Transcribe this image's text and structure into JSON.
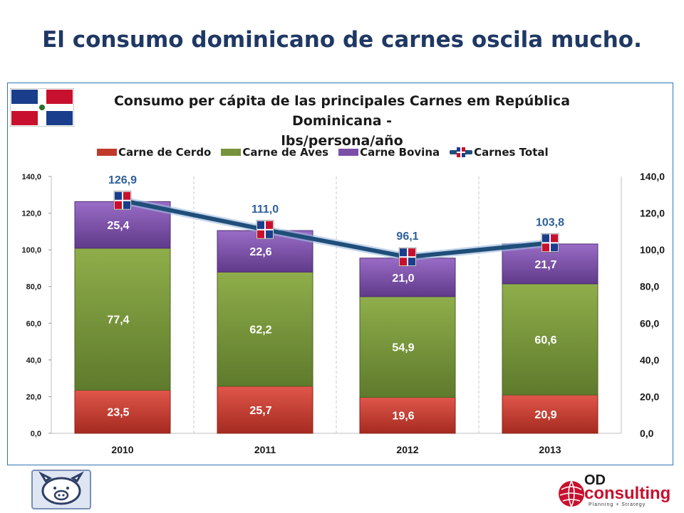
{
  "slide": {
    "title": "El consumo dominicano de carnes oscila mucho."
  },
  "colors": {
    "cerdo": "#c0392b",
    "aves": "#77933c",
    "bovina": "#7b4fa8",
    "total_line": "#1f4e79",
    "frame": "#2e75b6",
    "title": "#1f3864"
  },
  "icons": {
    "country_flag": "dominican-flag-icon",
    "pig": "pig-logo-icon",
    "company": "od-consulting-logo"
  },
  "logos": {
    "company_name": "consulting",
    "company_prefix": "OD",
    "tagline": "Planning + Strategy"
  },
  "chart_data": {
    "type": "bar",
    "stacked": true,
    "title": "Consumo per cápita de las principales Carnes em República Dominicana - lbs/persona/año",
    "title_lines": [
      "Consumo per cápita de las principales Carnes em República Dominicana -",
      "lbs/persona/año"
    ],
    "categories": [
      "2010",
      "2011",
      "2012",
      "2013"
    ],
    "series": [
      {
        "name": "Carne de Cerdo",
        "values": [
          23.5,
          25.7,
          19.6,
          20.9
        ],
        "labels": [
          "23,5",
          "25,7",
          "19,6",
          "20,9"
        ]
      },
      {
        "name": "Carne  de Aves",
        "values": [
          77.4,
          62.2,
          54.9,
          60.6
        ],
        "labels": [
          "77,4",
          "62,2",
          "54,9",
          "60,6"
        ]
      },
      {
        "name": "Carne Bovina",
        "values": [
          25.4,
          22.6,
          21.0,
          21.7
        ],
        "labels": [
          "25,4",
          "22,6",
          "21,0",
          "21,7"
        ]
      }
    ],
    "line_series": {
      "name": "Carnes Total",
      "values": [
        126.9,
        111.0,
        96.1,
        103.8
      ],
      "labels": [
        "126,9",
        "111,0",
        "96,1",
        "103,8"
      ]
    },
    "ylim": [
      0,
      140
    ],
    "yticks": [
      "0,0",
      "20,0",
      "40,0",
      "60,0",
      "80,0",
      "100,0",
      "120,0",
      "140,0"
    ],
    "y2ticks": [
      "0,0",
      "20,0",
      "40,0",
      "60,0",
      "80,0",
      "100,0",
      "120,0",
      "140,0"
    ],
    "grid": "vertical-dashed",
    "legend_position": "top"
  }
}
